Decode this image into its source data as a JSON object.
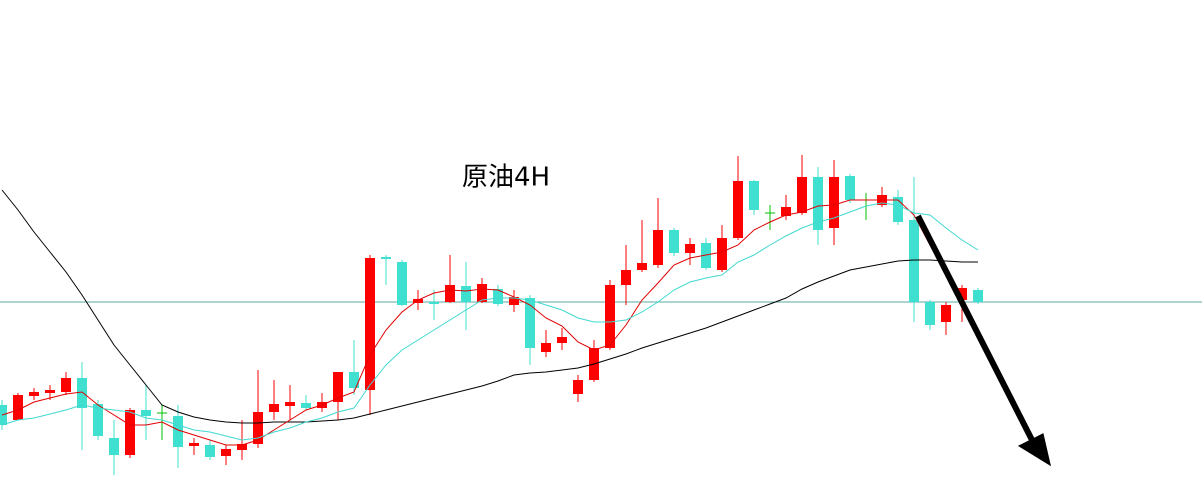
{
  "chart_data": {
    "type": "candlestick",
    "title": "原油4H",
    "open": [
      99,
      84,
      108,
      111,
      112,
      126,
      100,
      66,
      49,
      94,
      91,
      88,
      58,
      59,
      48,
      54,
      60,
      92,
      98,
      101,
      96,
      102,
      132,
      114,
      247,
      242,
      201,
      202,
      202,
      218,
      202,
      215,
      199,
      206,
      152,
      161,
      110,
      124,
      156,
      219,
      234,
      239,
      274,
      251,
      261,
      234,
      266,
      323,
      291,
      288,
      291,
      327,
      276,
      328,
      304,
      299,
      307,
      284,
      202,
      182,
      204,
      214
    ],
    "high": [
      104,
      111,
      116,
      119,
      132,
      142,
      104,
      84,
      96,
      119,
      99,
      99,
      66,
      64,
      59,
      84,
      134,
      124,
      119,
      109,
      111,
      132,
      164,
      249,
      249,
      244,
      214,
      214,
      249,
      242,
      226,
      219,
      214,
      209,
      174,
      176,
      129,
      164,
      224,
      259,
      284,
      306,
      276,
      266,
      266,
      279,
      348,
      324,
      299,
      309,
      349,
      337,
      344,
      330,
      311,
      317,
      314,
      327,
      204,
      202,
      219,
      216
    ],
    "low": [
      74,
      84,
      104,
      104,
      109,
      54,
      64,
      29,
      46,
      64,
      64,
      36,
      49,
      44,
      39,
      44,
      56,
      84,
      84,
      94,
      92,
      84,
      109,
      89,
      219,
      198,
      194,
      184,
      201,
      174,
      201,
      198,
      192,
      139,
      147,
      154,
      102,
      122,
      154,
      199,
      232,
      236,
      248,
      239,
      234,
      232,
      264,
      289,
      274,
      284,
      289,
      259,
      259,
      301,
      284,
      297,
      279,
      182,
      174,
      169,
      182,
      200
    ],
    "close": [
      79,
      109,
      112,
      114,
      126,
      96,
      68,
      49,
      94,
      88,
      91,
      57,
      61,
      47,
      55,
      60,
      92,
      100,
      102,
      96,
      102,
      132,
      116,
      246,
      245,
      199,
      205,
      200,
      219,
      202,
      220,
      200,
      207,
      156,
      161,
      167,
      124,
      156,
      219,
      234,
      241,
      274,
      251,
      260,
      236,
      266,
      323,
      294,
      291,
      297,
      327,
      274,
      327,
      304,
      304,
      309,
      282,
      202,
      179,
      199,
      216,
      202
    ],
    "up_color": "#ff0000",
    "down_color": "#40e0d0",
    "flat_color": "#00c000",
    "series": [
      {
        "color": "#000000",
        "values": [
          314,
          294,
          272,
          252,
          232,
          209,
          184,
          159,
          139,
          119,
          99,
          92,
          87,
          84,
          82,
          81,
          81,
          82,
          82,
          82,
          83,
          84,
          86,
          90,
          94,
          98,
          102,
          106,
          110,
          114,
          118,
          123,
          129,
          131,
          132,
          134,
          136,
          140,
          145,
          150,
          156,
          161,
          166,
          171,
          176,
          182,
          188,
          194,
          200,
          206,
          215,
          222,
          228,
          234,
          237,
          240,
          243,
          244,
          244,
          243,
          242,
          242
        ]
      },
      {
        "color": "#e00000",
        "values": [
          89,
          94,
          102,
          106,
          110,
          112,
          99,
          89,
          79,
          79,
          82,
          74,
          69,
          64,
          59,
          59,
          64,
          74,
          84,
          94,
          99,
          106,
          112,
          149,
          174,
          192,
          204,
          211,
          214,
          213,
          215,
          214,
          207,
          199,
          186,
          178,
          162,
          154,
          159,
          179,
          204,
          221,
          239,
          246,
          249,
          252,
          259,
          274,
          282,
          289,
          292,
          298,
          299,
          304,
          304,
          304,
          304,
          289,
          259,
          234,
          208,
          null
        ]
      },
      {
        "color": "#40d8d0",
        "values": [
          79,
          84,
          86,
          90,
          94,
          99,
          96,
          94,
          92,
          86,
          84,
          79,
          74,
          72,
          68,
          64,
          66,
          72,
          76,
          82,
          86,
          92,
          96,
          119,
          139,
          154,
          164,
          174,
          184,
          194,
          204,
          206,
          206,
          204,
          199,
          194,
          186,
          182,
          182,
          184,
          192,
          202,
          214,
          222,
          226,
          229,
          242,
          249,
          259,
          268,
          276,
          282,
          286,
          292,
          298,
          301,
          299,
          291,
          289,
          276,
          264,
          254
        ]
      }
    ],
    "hline": 202,
    "hline_color": "#5aaaa0",
    "ylim": [
      0,
      504
    ]
  }
}
